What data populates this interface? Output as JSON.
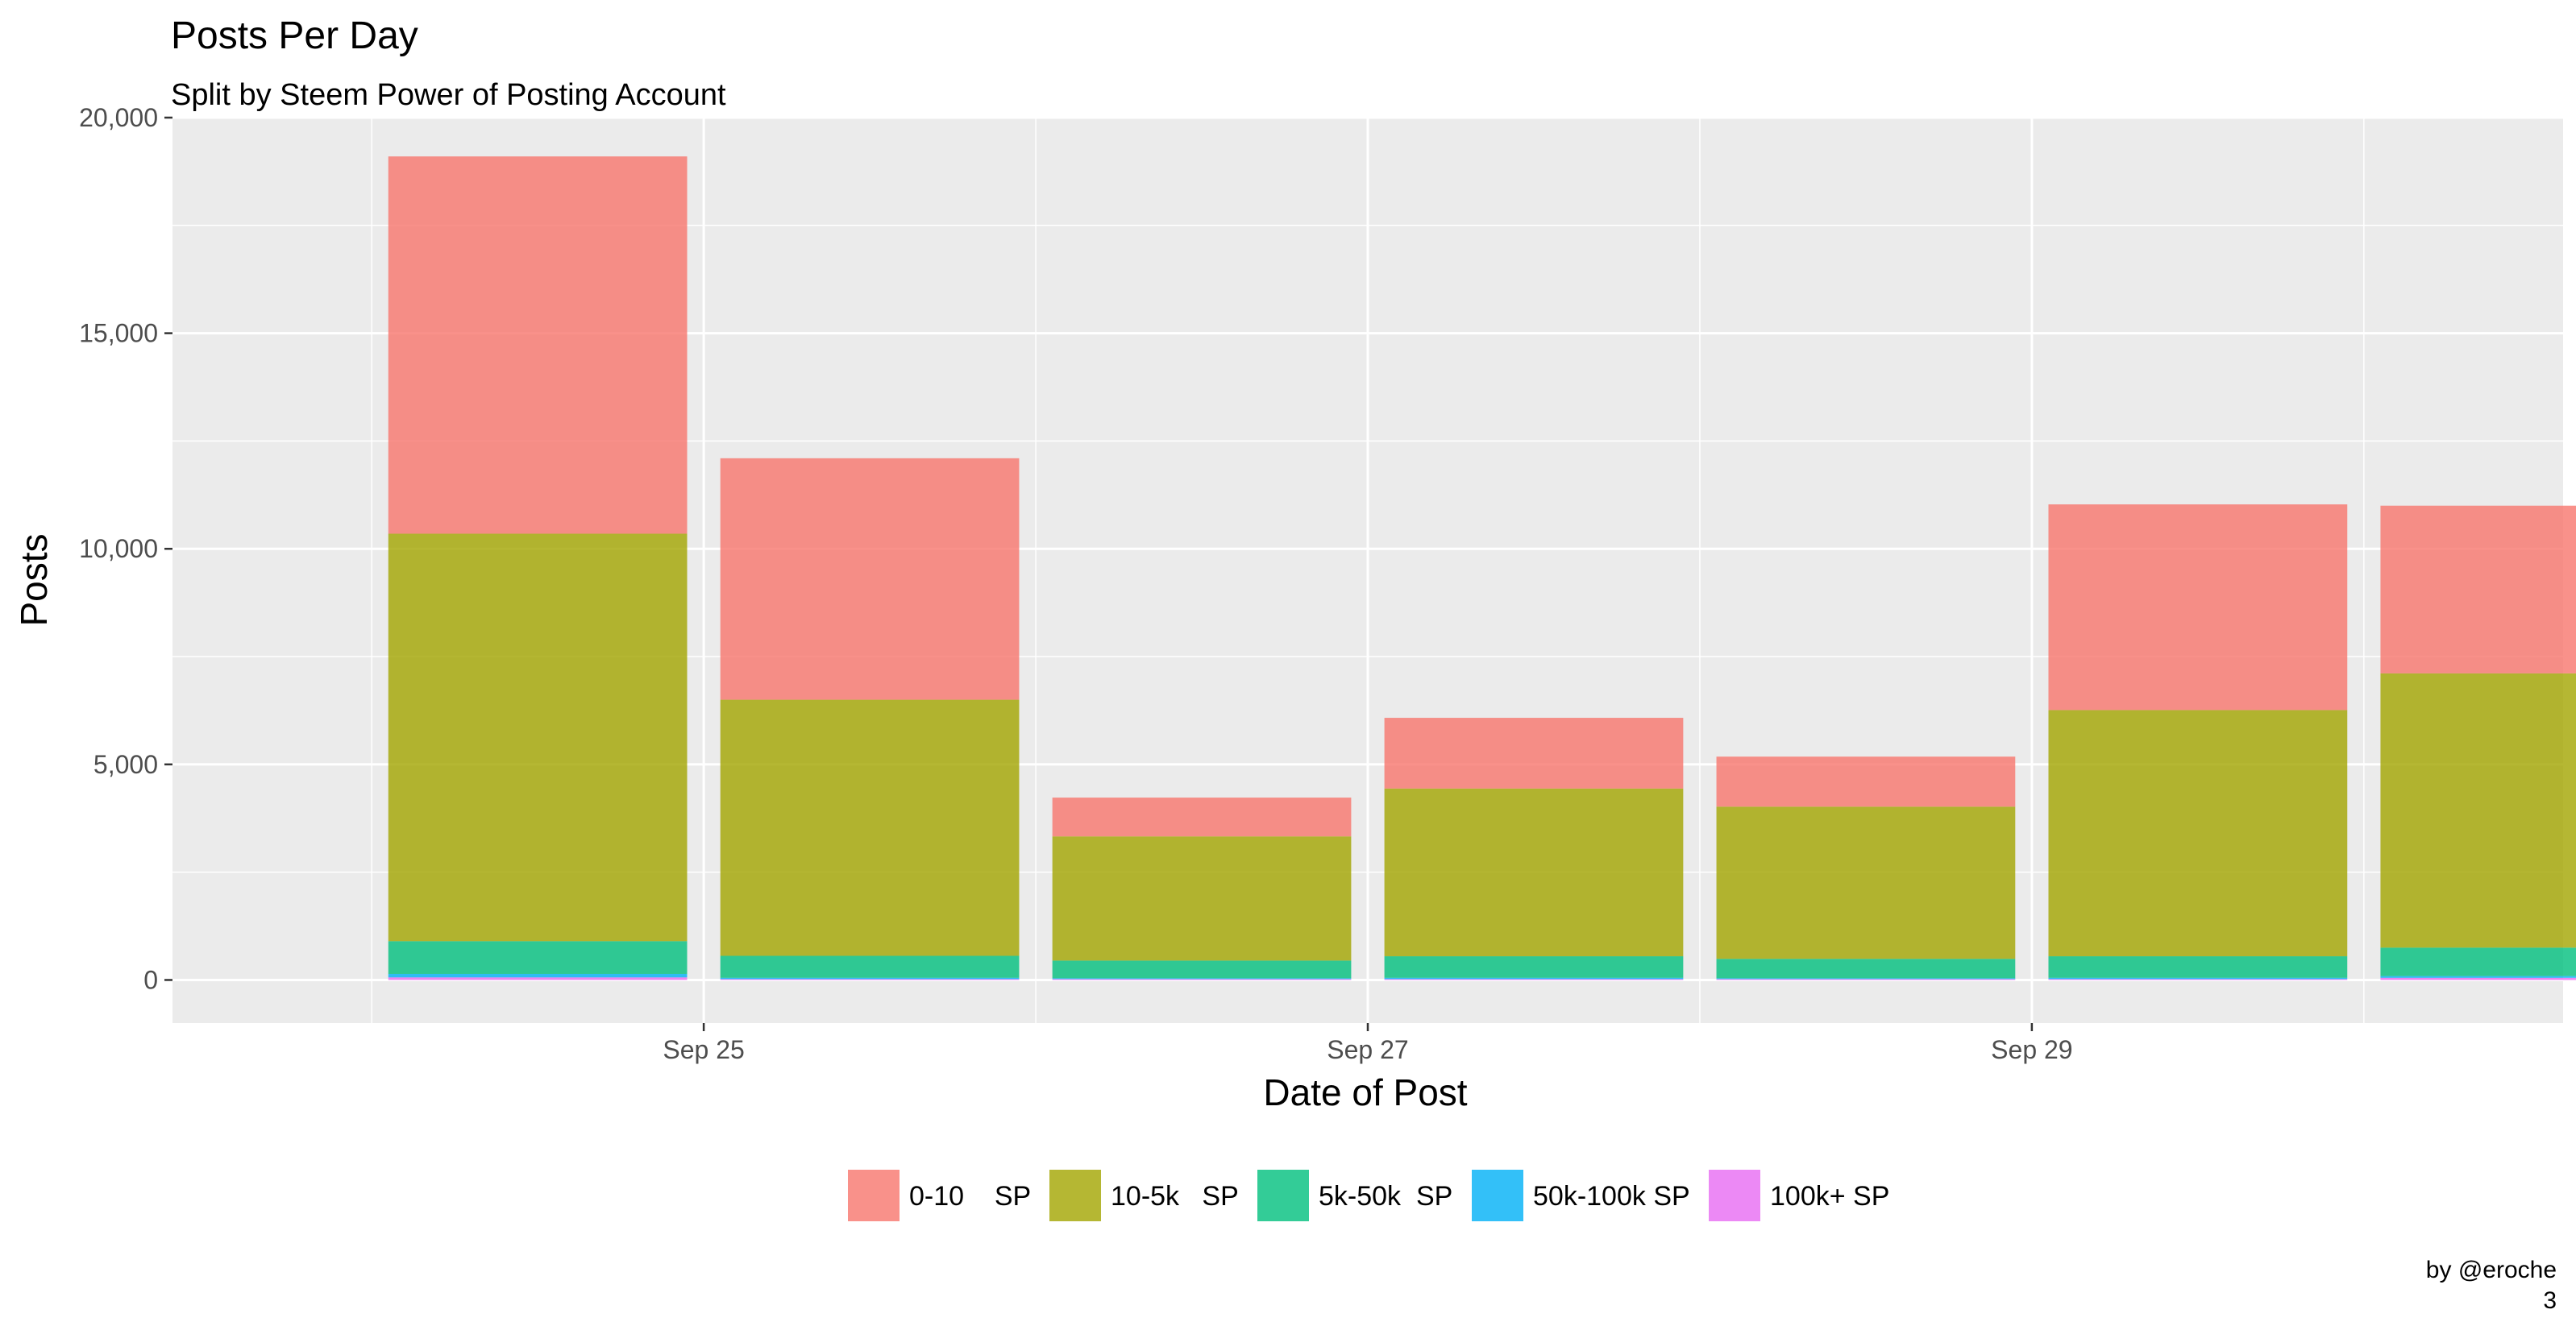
{
  "chart_data": {
    "type": "bar",
    "stacked": true,
    "title": "Posts Per Day",
    "subtitle": "Split by Steem Power of Posting Account",
    "xlabel": "Date of Post",
    "ylabel": "Posts",
    "ylim": [
      -1000,
      20000
    ],
    "y_ticks": [
      0,
      5000,
      10000,
      15000,
      20000
    ],
    "y_tick_labels": [
      "0",
      "5,000",
      "10,000",
      "15,000",
      "20,000"
    ],
    "x_tick_labels": [
      "Sep 25",
      "Sep 27",
      "Sep 29"
    ],
    "categories": [
      "Sep 24",
      "Sep 25",
      "Sep 26",
      "Sep 27",
      "Sep 28",
      "Sep 29",
      "Sep 30"
    ],
    "grid": true,
    "legend_position": "bottom",
    "series": [
      {
        "name": "100k+ SP",
        "color": "#E76BF3",
        "values": [
          60,
          20,
          20,
          20,
          20,
          20,
          50
        ]
      },
      {
        "name": "50k-100k SP",
        "color": "#00B0F6",
        "values": [
          80,
          30,
          20,
          30,
          20,
          30,
          40
        ]
      },
      {
        "name": "5k-50k  SP",
        "color": "#00BF7D",
        "values": [
          760,
          510,
          410,
          500,
          450,
          500,
          660
        ]
      },
      {
        "name": "10-5k   SP",
        "color": "#A3A500",
        "values": [
          9450,
          5940,
          2880,
          3890,
          3530,
          5710,
          6360
        ]
      },
      {
        "name": "0-10    SP",
        "color": "#F8766D",
        "values": [
          8750,
          5600,
          900,
          1640,
          1160,
          4770,
          3890
        ]
      }
    ],
    "legend_order": [
      "0-10    SP",
      "10-5k   SP",
      "5k-50k  SP",
      "50k-100k SP",
      "100k+ SP"
    ],
    "caption": [
      "by @eroche",
      "3"
    ]
  }
}
